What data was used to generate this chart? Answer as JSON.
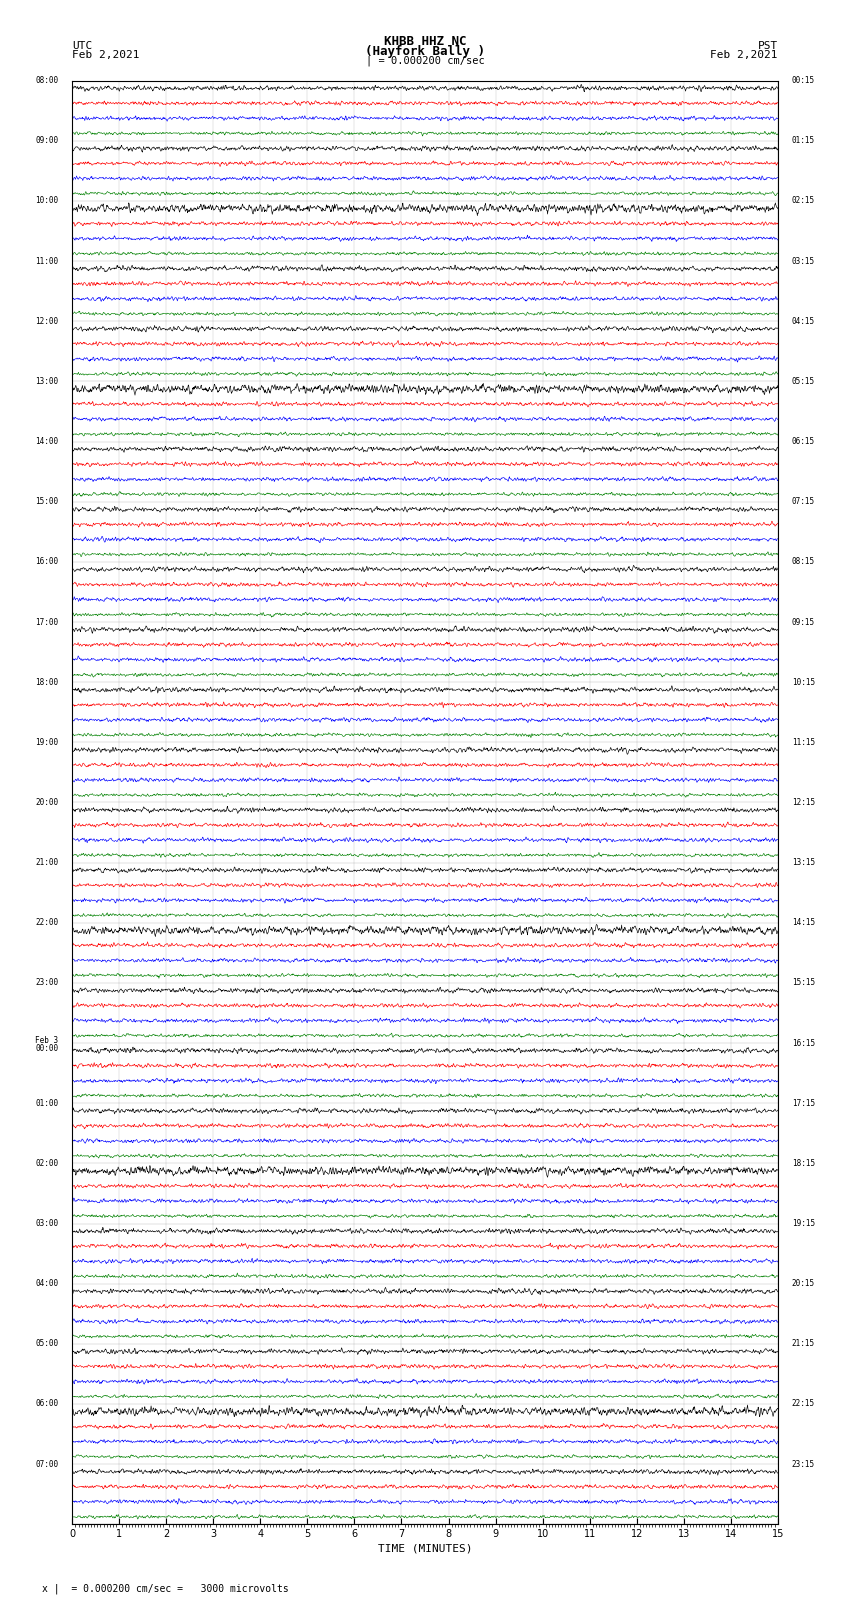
{
  "title_line1": "KHBB HHZ NC",
  "title_line2": "(Hayfork Bally )",
  "scale_text": "| = 0.000200 cm/sec",
  "label_utc": "UTC",
  "label_pst": "PST",
  "date_left": "Feb 2,2021",
  "date_right": "Feb 2,2021",
  "xlabel": "TIME (MINUTES)",
  "footer_text": "x |  = 0.000200 cm/sec =   3000 microvolts",
  "utc_times": [
    "08:00",
    "",
    "",
    "",
    "09:00",
    "",
    "",
    "",
    "10:00",
    "",
    "",
    "",
    "11:00",
    "",
    "",
    "",
    "12:00",
    "",
    "",
    "",
    "13:00",
    "",
    "",
    "",
    "14:00",
    "",
    "",
    "",
    "15:00",
    "",
    "",
    "",
    "16:00",
    "",
    "",
    "",
    "17:00",
    "",
    "",
    "",
    "18:00",
    "",
    "",
    "",
    "19:00",
    "",
    "",
    "",
    "20:00",
    "",
    "",
    "",
    "21:00",
    "",
    "",
    "",
    "22:00",
    "",
    "",
    "",
    "23:00",
    "",
    "",
    "",
    "Feb 3\n00:00",
    "",
    "",
    "",
    "01:00",
    "",
    "",
    "",
    "02:00",
    "",
    "",
    "",
    "03:00",
    "",
    "",
    "",
    "04:00",
    "",
    "",
    "",
    "05:00",
    "",
    "",
    "",
    "06:00",
    "",
    "",
    "",
    "07:00",
    "",
    ""
  ],
  "pst_times": [
    "00:15",
    "",
    "",
    "",
    "01:15",
    "",
    "",
    "",
    "02:15",
    "",
    "",
    "",
    "03:15",
    "",
    "",
    "",
    "04:15",
    "",
    "",
    "",
    "05:15",
    "",
    "",
    "",
    "06:15",
    "",
    "",
    "",
    "07:15",
    "",
    "",
    "",
    "08:15",
    "",
    "",
    "",
    "09:15",
    "",
    "",
    "",
    "10:15",
    "",
    "",
    "",
    "11:15",
    "",
    "",
    "",
    "12:15",
    "",
    "",
    "",
    "13:15",
    "",
    "",
    "",
    "14:15",
    "",
    "",
    "",
    "15:15",
    "",
    "",
    "",
    "16:15",
    "",
    "",
    "",
    "17:15",
    "",
    "",
    "",
    "18:15",
    "",
    "",
    "",
    "19:15",
    "",
    "",
    "",
    "20:15",
    "",
    "",
    "",
    "21:15",
    "",
    "",
    "",
    "22:15",
    "",
    "",
    "",
    "23:15",
    "",
    ""
  ],
  "n_rows": 30,
  "traces_per_row": 4,
  "colors": [
    "black",
    "red",
    "blue",
    "green"
  ],
  "fig_width": 8.5,
  "fig_height": 16.13,
  "dpi": 100,
  "xmin": 0,
  "xmax": 15,
  "xticks": [
    0,
    1,
    2,
    3,
    4,
    5,
    6,
    7,
    8,
    9,
    10,
    11,
    12,
    13,
    14,
    15
  ],
  "noise_scale": [
    0.12,
    0.1,
    0.1,
    0.08
  ],
  "event_row_black": 26,
  "event_row_blue": 25,
  "bg_color": "white",
  "grid_color": "#aaaaaa",
  "separator_color": "#888888",
  "n_samples": 1800
}
